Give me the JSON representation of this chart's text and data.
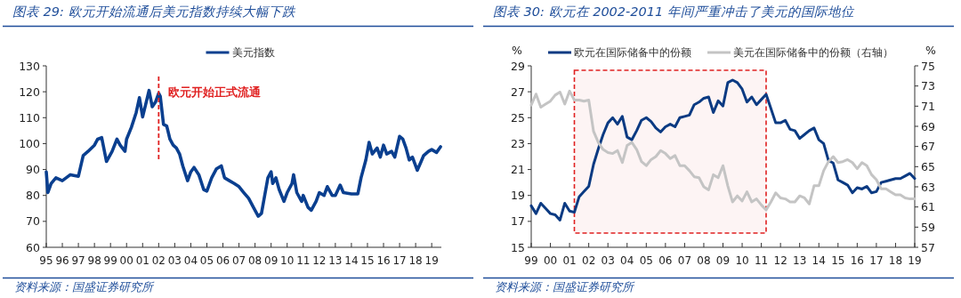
{
  "chart_data": [
    {
      "type": "line",
      "title": "图表 29: 欧元开始流通后美元指数持续大幅下跌",
      "legend": "top",
      "xlim": [
        1995,
        2019.6
      ],
      "ylim": [
        60,
        130
      ],
      "xticks": [
        {
          "value": 1995,
          "label": "95"
        },
        {
          "value": 1996,
          "label": "96"
        },
        {
          "value": 1997,
          "label": "97"
        },
        {
          "value": 1998,
          "label": "98"
        },
        {
          "value": 1999,
          "label": "99"
        },
        {
          "value": 2000,
          "label": "00"
        },
        {
          "value": 2001,
          "label": "01"
        },
        {
          "value": 2002,
          "label": "02"
        },
        {
          "value": 2003,
          "label": "03"
        },
        {
          "value": 2004,
          "label": "04"
        },
        {
          "value": 2005,
          "label": "05"
        },
        {
          "value": 2006,
          "label": "06"
        },
        {
          "value": 2007,
          "label": "07"
        },
        {
          "value": 2008,
          "label": "08"
        },
        {
          "value": 2009,
          "label": "09"
        },
        {
          "value": 2010,
          "label": "10"
        },
        {
          "value": 2011,
          "label": "11"
        },
        {
          "value": 2012,
          "label": "12"
        },
        {
          "value": 2013,
          "label": "13"
        },
        {
          "value": 2014,
          "label": "14"
        },
        {
          "value": 2015,
          "label": "15"
        },
        {
          "value": 2016,
          "label": "16"
        },
        {
          "value": 2017,
          "label": "17"
        },
        {
          "value": 2018,
          "label": "18"
        },
        {
          "value": 2019,
          "label": "19"
        }
      ],
      "yticks": [
        60,
        70,
        80,
        90,
        100,
        110,
        120,
        130
      ],
      "ref_lines": [
        {
          "axis": "x",
          "value": 2002,
          "label": "欧元开始正式流通",
          "color": "#e02020",
          "line_style": "dashed"
        }
      ],
      "annotations": [
        "资料来源：国盛证券研究所"
      ],
      "series": [
        {
          "name": "美元指数",
          "color": "#0a3f8f",
          "x": [
            1995.0,
            1995.1,
            1995.3,
            1995.6,
            1996.0,
            1996.5,
            1997.0,
            1997.3,
            1997.6,
            1998.0,
            1998.2,
            1998.45,
            1998.75,
            1999.1,
            1999.4,
            1999.6,
            1999.9,
            2000.0,
            2000.3,
            2000.6,
            2000.8,
            2001.0,
            2001.2,
            2001.4,
            2001.6,
            2001.8,
            2002.0,
            2002.1,
            2002.3,
            2002.5,
            2002.7,
            2002.9,
            2003.1,
            2003.3,
            2003.5,
            2003.8,
            2004.0,
            2004.2,
            2004.5,
            2004.8,
            2005.0,
            2005.3,
            2005.6,
            2005.9,
            2006.1,
            2006.4,
            2006.7,
            2007.0,
            2007.3,
            2007.6,
            2007.9,
            2008.2,
            2008.4,
            2008.6,
            2008.8,
            2009.0,
            2009.1,
            2009.3,
            2009.5,
            2009.8,
            2010.0,
            2010.3,
            2010.4,
            2010.6,
            2010.9,
            2011.0,
            2011.3,
            2011.5,
            2011.8,
            2012.0,
            2012.3,
            2012.5,
            2012.8,
            2013.0,
            2013.3,
            2013.5,
            2014.0,
            2014.4,
            2014.6,
            2014.9,
            2015.1,
            2015.3,
            2015.6,
            2015.8,
            2016.0,
            2016.2,
            2016.5,
            2016.7,
            2017.0,
            2017.2,
            2017.4,
            2017.6,
            2017.8,
            2018.1,
            2018.3,
            2018.5,
            2018.8,
            2019.0,
            2019.3,
            2019.55
          ],
          "values": [
            89.1,
            81.1,
            84.6,
            86.8,
            85.7,
            88,
            87.4,
            95.4,
            97,
            99.4,
            101.7,
            102.3,
            93.1,
            97,
            101.7,
            99.4,
            97,
            101.7,
            106.3,
            112,
            117.7,
            110.3,
            115.4,
            120.5,
            114.2,
            116,
            119.4,
            118.2,
            107.4,
            106.8,
            101.7,
            99.4,
            98.3,
            96,
            91.4,
            85.7,
            89.1,
            90.8,
            88,
            82.3,
            81.7,
            86.8,
            90.3,
            91.4,
            86.8,
            85.7,
            84.6,
            83.4,
            81.1,
            78.9,
            75.4,
            72,
            73.1,
            80,
            86.8,
            89.1,
            84.6,
            86.8,
            82.3,
            77.7,
            81.1,
            84.6,
            88,
            81.1,
            77.7,
            80,
            75.4,
            74.3,
            77.7,
            81.1,
            80,
            83.4,
            80,
            80,
            84,
            81.1,
            80.6,
            80.6,
            86.8,
            93.7,
            100.5,
            96,
            98.3,
            94.8,
            99.4,
            96,
            97,
            94.8,
            102.8,
            101.7,
            98.3,
            93.7,
            94.8,
            89.7,
            92.5,
            95.4,
            97,
            97.7,
            96.6,
            98.8
          ]
        }
      ]
    },
    {
      "type": "line",
      "title": "图表 30: 欧元在 2002-2011 年间严重冲击了美元的国际地位",
      "legend": "top",
      "ylabel": "%",
      "y2label": "%",
      "xlim": [
        1999,
        2019
      ],
      "ylim": [
        15,
        29
      ],
      "y2lim": [
        57,
        75
      ],
      "xticks": [
        {
          "value": 1999,
          "label": "99"
        },
        {
          "value": 2000,
          "label": "00"
        },
        {
          "value": 2001,
          "label": "01"
        },
        {
          "value": 2002,
          "label": "02"
        },
        {
          "value": 2003,
          "label": "03"
        },
        {
          "value": 2004,
          "label": "04"
        },
        {
          "value": 2005,
          "label": "05"
        },
        {
          "value": 2006,
          "label": "06"
        },
        {
          "value": 2007,
          "label": "07"
        },
        {
          "value": 2008,
          "label": "08"
        },
        {
          "value": 2009,
          "label": "09"
        },
        {
          "value": 2010,
          "label": "10"
        },
        {
          "value": 2011,
          "label": "11"
        },
        {
          "value": 2012,
          "label": "12"
        },
        {
          "value": 2013,
          "label": "13"
        },
        {
          "value": 2014,
          "label": "14"
        },
        {
          "value": 2015,
          "label": "15"
        },
        {
          "value": 2016,
          "label": "16"
        },
        {
          "value": 2017,
          "label": "17"
        },
        {
          "value": 2018,
          "label": "18"
        },
        {
          "value": 2019,
          "label": "19"
        }
      ],
      "yticks": [
        15,
        17,
        19,
        21,
        23,
        25,
        27,
        29
      ],
      "y2ticks": [
        57,
        59,
        61,
        63,
        65,
        67,
        69,
        71,
        73,
        75
      ],
      "bands": [
        {
          "axis": "x",
          "from": 2001.25,
          "to": 2011.25,
          "color": "#e02020"
        }
      ],
      "annotations": [
        "资料来源：国盛证券研究所"
      ],
      "x": [
        1999,
        1999.25,
        1999.5,
        1999.75,
        2000,
        2000.25,
        2000.5,
        2000.75,
        2001,
        2001.25,
        2001.5,
        2001.75,
        2002,
        2002.25,
        2002.5,
        2002.75,
        2003,
        2003.25,
        2003.5,
        2003.75,
        2004,
        2004.25,
        2004.5,
        2004.75,
        2005,
        2005.25,
        2005.5,
        2005.75,
        2006,
        2006.25,
        2006.5,
        2006.75,
        2007,
        2007.25,
        2007.5,
        2007.75,
        2008,
        2008.25,
        2008.5,
        2008.75,
        2009,
        2009.25,
        2009.5,
        2009.75,
        2010,
        2010.25,
        2010.5,
        2010.75,
        2011,
        2011.25,
        2011.5,
        2011.75,
        2012,
        2012.25,
        2012.5,
        2012.75,
        2013,
        2013.25,
        2013.5,
        2013.75,
        2014,
        2014.25,
        2014.5,
        2014.75,
        2015,
        2015.25,
        2015.5,
        2015.75,
        2016,
        2016.25,
        2016.5,
        2016.75,
        2017,
        2017.25,
        2017.5,
        2017.75,
        2018,
        2018.25,
        2018.5,
        2018.75,
        2019
      ],
      "series": [
        {
          "name": "欧元在国际储备中的份额",
          "color": "#0b3a82",
          "values": [
            18.2,
            17.6,
            18.4,
            18.0,
            17.6,
            17.5,
            17.1,
            18.4,
            17.8,
            17.7,
            18.9,
            19.3,
            19.7,
            21.4,
            22.6,
            23.7,
            24.6,
            25.0,
            24.5,
            25.1,
            23.5,
            23.3,
            24.0,
            24.8,
            25.0,
            24.7,
            24.2,
            23.9,
            24.3,
            24.5,
            24.3,
            25.0,
            25.1,
            25.2,
            26.0,
            26.2,
            26.5,
            26.6,
            25.4,
            26.3,
            25.9,
            27.7,
            27.9,
            27.7,
            27.2,
            26.2,
            26.6,
            26.0,
            26.4,
            26.8,
            25.7,
            24.6,
            24.6,
            24.8,
            24.1,
            24.0,
            23.4,
            23.7,
            24.0,
            24.2,
            23.3,
            23.0,
            21.7,
            21.5,
            20.2,
            20.0,
            19.8,
            19.2,
            19.6,
            19.5,
            19.7,
            19.2,
            19.3,
            20.0,
            20.1,
            20.2,
            20.3,
            20.3,
            20.5,
            20.7,
            20.3
          ]
        },
        {
          "name": "美元在国际储备中的份额（右轴）",
          "color": "#c4c4c4",
          "axis": "y2",
          "values": [
            71.1,
            72.2,
            70.9,
            71.2,
            71.5,
            72.1,
            72.4,
            71.2,
            72.5,
            71.6,
            71.6,
            71.5,
            71.6,
            68.5,
            67.4,
            66.7,
            66.4,
            66.3,
            66.6,
            65.4,
            67.1,
            67.4,
            66.7,
            65.5,
            65.1,
            65.7,
            66.0,
            66.6,
            66.3,
            65.8,
            66.1,
            65.1,
            65.1,
            64.6,
            64.0,
            63.9,
            63.0,
            62.7,
            64.2,
            63.9,
            65.1,
            63.1,
            61.5,
            62.1,
            61.6,
            62.5,
            61.5,
            61.8,
            61.2,
            60.7,
            61.5,
            62.4,
            61.9,
            61.8,
            61.5,
            61.5,
            62.1,
            61.9,
            61.3,
            63.1,
            63.1,
            64.6,
            65.5,
            66.0,
            65.4,
            65.5,
            65.7,
            65.4,
            64.8,
            65.4,
            65.1,
            64.2,
            63.7,
            62.8,
            62.8,
            62.5,
            62.2,
            62.2,
            61.9,
            61.8,
            61.8
          ]
        }
      ]
    }
  ]
}
